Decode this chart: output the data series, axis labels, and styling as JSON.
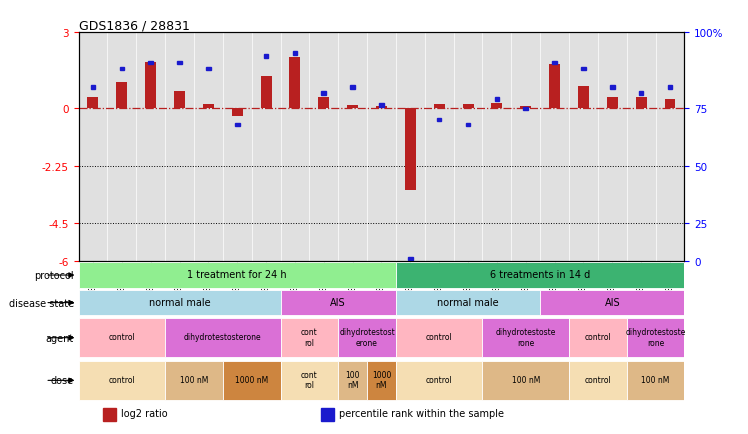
{
  "title": "GDS1836 / 28831",
  "samples": [
    "GSM88440",
    "GSM88442",
    "GSM88422",
    "GSM88438",
    "GSM88423",
    "GSM88441",
    "GSM88429",
    "GSM88435",
    "GSM88439",
    "GSM88424",
    "GSM88431",
    "GSM88436",
    "GSM88426",
    "GSM88432",
    "GSM88434",
    "GSM88427",
    "GSM88430",
    "GSM88437",
    "GSM88425",
    "GSM88428",
    "GSM88433"
  ],
  "log2_ratio": [
    0.42,
    1.02,
    1.82,
    0.68,
    0.18,
    -0.32,
    1.28,
    2.02,
    0.45,
    0.12,
    0.09,
    -3.22,
    0.18,
    0.18,
    0.22,
    0.07,
    1.72,
    0.88,
    0.42,
    0.45,
    0.36
  ],
  "pct_rank": [
    82,
    88,
    90,
    90,
    88,
    68,
    92,
    93,
    80,
    82,
    76,
    2,
    70,
    68,
    78,
    75,
    90,
    88,
    82,
    80,
    82
  ],
  "ylim_left": [
    -6,
    3
  ],
  "right_ticks_pct": [
    100,
    75,
    50,
    25,
    0
  ],
  "left_ticks_val": [
    3,
    0,
    -2.25,
    -4.5,
    -6
  ],
  "bar_color": "#b82020",
  "dot_color": "#1a1acd",
  "main_bg": "#e0e0e0",
  "protocols": [
    {
      "label": "1 treatment for 24 h",
      "start": 0,
      "end": 11,
      "color": "#90ee90"
    },
    {
      "label": "6 treatments in 14 d",
      "start": 11,
      "end": 21,
      "color": "#3cb371"
    }
  ],
  "disease_states": [
    {
      "label": "normal male",
      "start": 0,
      "end": 7,
      "color": "#add8e6"
    },
    {
      "label": "AIS",
      "start": 7,
      "end": 11,
      "color": "#da70d6"
    },
    {
      "label": "normal male",
      "start": 11,
      "end": 16,
      "color": "#add8e6"
    },
    {
      "label": "AIS",
      "start": 16,
      "end": 21,
      "color": "#da70d6"
    }
  ],
  "agents": [
    {
      "label": "control",
      "start": 0,
      "end": 3,
      "color": "#ffb6c1"
    },
    {
      "label": "dihydrotestosterone",
      "start": 3,
      "end": 7,
      "color": "#da70d6"
    },
    {
      "label": "cont\nrol",
      "start": 7,
      "end": 9,
      "color": "#ffb6c1"
    },
    {
      "label": "dihydrotestost\nerone",
      "start": 9,
      "end": 11,
      "color": "#da70d6"
    },
    {
      "label": "control",
      "start": 11,
      "end": 14,
      "color": "#ffb6c1"
    },
    {
      "label": "dihydrotestoste\nrone",
      "start": 14,
      "end": 17,
      "color": "#da70d6"
    },
    {
      "label": "control",
      "start": 17,
      "end": 19,
      "color": "#ffb6c1"
    },
    {
      "label": "dihydrotestoste\nrone",
      "start": 19,
      "end": 21,
      "color": "#da70d6"
    }
  ],
  "doses": [
    {
      "label": "control",
      "start": 0,
      "end": 3,
      "color": "#f5deb3"
    },
    {
      "label": "100 nM",
      "start": 3,
      "end": 5,
      "color": "#deb887"
    },
    {
      "label": "1000 nM",
      "start": 5,
      "end": 7,
      "color": "#cd853f"
    },
    {
      "label": "cont\nrol",
      "start": 7,
      "end": 9,
      "color": "#f5deb3"
    },
    {
      "label": "100\nnM",
      "start": 9,
      "end": 10,
      "color": "#deb887"
    },
    {
      "label": "1000\nnM",
      "start": 10,
      "end": 11,
      "color": "#cd853f"
    },
    {
      "label": "control",
      "start": 11,
      "end": 14,
      "color": "#f5deb3"
    },
    {
      "label": "100 nM",
      "start": 14,
      "end": 17,
      "color": "#deb887"
    },
    {
      "label": "control",
      "start": 17,
      "end": 19,
      "color": "#f5deb3"
    },
    {
      "label": "100 nM",
      "start": 19,
      "end": 21,
      "color": "#deb887"
    }
  ],
  "legend_items": [
    {
      "label": "log2 ratio",
      "color": "#b82020"
    },
    {
      "label": "percentile rank within the sample",
      "color": "#1a1acd"
    }
  ]
}
